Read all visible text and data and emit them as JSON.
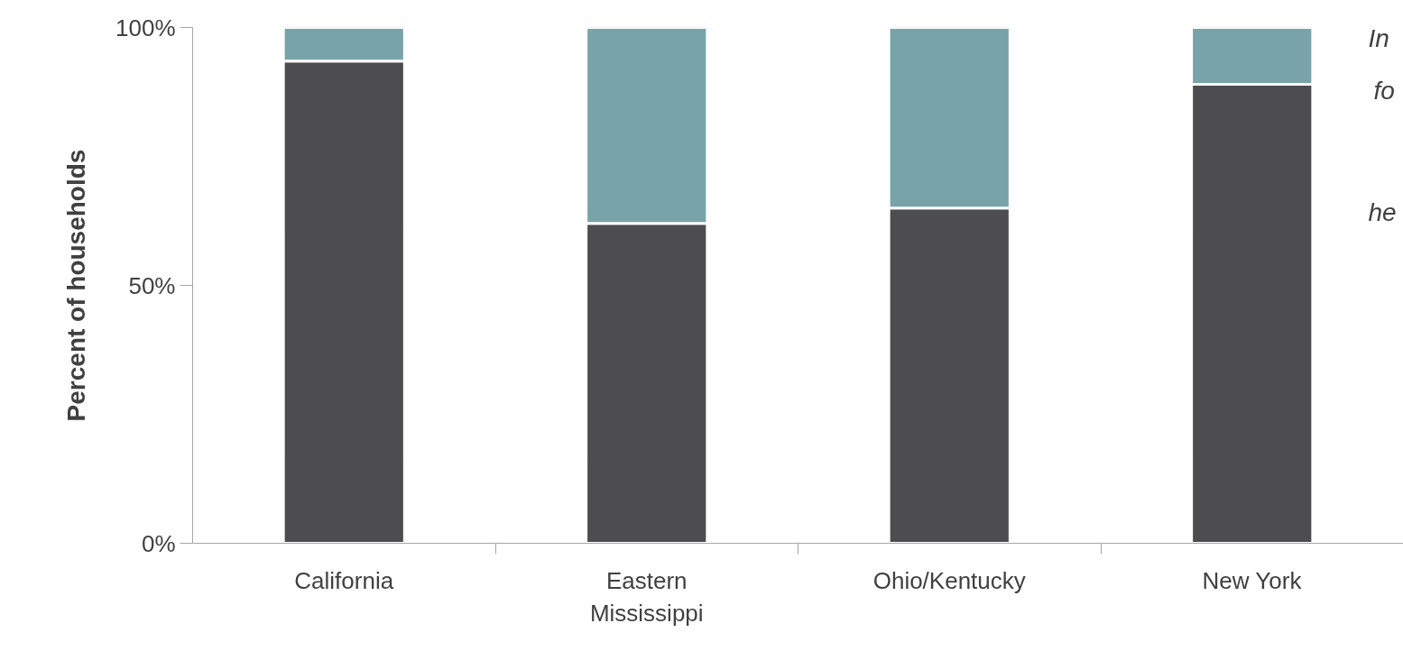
{
  "chart_data": {
    "type": "bar",
    "stacked": true,
    "ylabel": "Percent of households",
    "categories": [
      "California",
      "Eastern Mississippi",
      "Ohio/Kentucky",
      "New York"
    ],
    "series": [
      {
        "color": "#4d4d4f",
        "values": [
          93.5,
          62,
          65,
          89
        ]
      },
      {
        "color": "#78a3a9",
        "values": [
          6.5,
          38,
          35,
          11
        ]
      }
    ],
    "ylim": [
      0,
      100
    ],
    "yticks": [
      {
        "value": 0,
        "label": "0%"
      },
      {
        "value": 50,
        "label": "50%"
      },
      {
        "value": 100,
        "label": "100%"
      }
    ],
    "grid": false,
    "annotations": [
      "In",
      "fo",
      "he"
    ]
  }
}
